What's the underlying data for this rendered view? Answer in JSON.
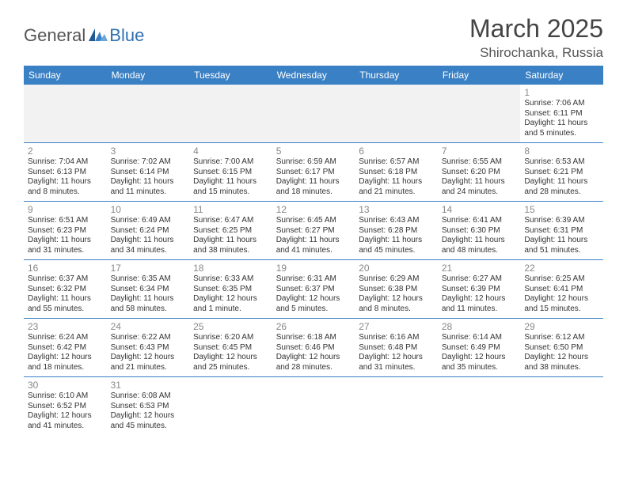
{
  "logo": {
    "textA": "General",
    "textB": "Blue"
  },
  "header": {
    "month": "March 2025",
    "location": "Shirochanka, Russia"
  },
  "colors": {
    "headerBlue": "#3a80c4",
    "rowBorder": "#3a80c4",
    "blankFill": "#f2f2f2",
    "dayNum": "#888888"
  },
  "weekdays": [
    "Sunday",
    "Monday",
    "Tuesday",
    "Wednesday",
    "Thursday",
    "Friday",
    "Saturday"
  ],
  "days": {
    "1": {
      "sunrise": "7:06 AM",
      "sunset": "6:11 PM",
      "daylight": "11 hours and 5 minutes."
    },
    "2": {
      "sunrise": "7:04 AM",
      "sunset": "6:13 PM",
      "daylight": "11 hours and 8 minutes."
    },
    "3": {
      "sunrise": "7:02 AM",
      "sunset": "6:14 PM",
      "daylight": "11 hours and 11 minutes."
    },
    "4": {
      "sunrise": "7:00 AM",
      "sunset": "6:15 PM",
      "daylight": "11 hours and 15 minutes."
    },
    "5": {
      "sunrise": "6:59 AM",
      "sunset": "6:17 PM",
      "daylight": "11 hours and 18 minutes."
    },
    "6": {
      "sunrise": "6:57 AM",
      "sunset": "6:18 PM",
      "daylight": "11 hours and 21 minutes."
    },
    "7": {
      "sunrise": "6:55 AM",
      "sunset": "6:20 PM",
      "daylight": "11 hours and 24 minutes."
    },
    "8": {
      "sunrise": "6:53 AM",
      "sunset": "6:21 PM",
      "daylight": "11 hours and 28 minutes."
    },
    "9": {
      "sunrise": "6:51 AM",
      "sunset": "6:23 PM",
      "daylight": "11 hours and 31 minutes."
    },
    "10": {
      "sunrise": "6:49 AM",
      "sunset": "6:24 PM",
      "daylight": "11 hours and 34 minutes."
    },
    "11": {
      "sunrise": "6:47 AM",
      "sunset": "6:25 PM",
      "daylight": "11 hours and 38 minutes."
    },
    "12": {
      "sunrise": "6:45 AM",
      "sunset": "6:27 PM",
      "daylight": "11 hours and 41 minutes."
    },
    "13": {
      "sunrise": "6:43 AM",
      "sunset": "6:28 PM",
      "daylight": "11 hours and 45 minutes."
    },
    "14": {
      "sunrise": "6:41 AM",
      "sunset": "6:30 PM",
      "daylight": "11 hours and 48 minutes."
    },
    "15": {
      "sunrise": "6:39 AM",
      "sunset": "6:31 PM",
      "daylight": "11 hours and 51 minutes."
    },
    "16": {
      "sunrise": "6:37 AM",
      "sunset": "6:32 PM",
      "daylight": "11 hours and 55 minutes."
    },
    "17": {
      "sunrise": "6:35 AM",
      "sunset": "6:34 PM",
      "daylight": "11 hours and 58 minutes."
    },
    "18": {
      "sunrise": "6:33 AM",
      "sunset": "6:35 PM",
      "daylight": "12 hours and 1 minute."
    },
    "19": {
      "sunrise": "6:31 AM",
      "sunset": "6:37 PM",
      "daylight": "12 hours and 5 minutes."
    },
    "20": {
      "sunrise": "6:29 AM",
      "sunset": "6:38 PM",
      "daylight": "12 hours and 8 minutes."
    },
    "21": {
      "sunrise": "6:27 AM",
      "sunset": "6:39 PM",
      "daylight": "12 hours and 11 minutes."
    },
    "22": {
      "sunrise": "6:25 AM",
      "sunset": "6:41 PM",
      "daylight": "12 hours and 15 minutes."
    },
    "23": {
      "sunrise": "6:24 AM",
      "sunset": "6:42 PM",
      "daylight": "12 hours and 18 minutes."
    },
    "24": {
      "sunrise": "6:22 AM",
      "sunset": "6:43 PM",
      "daylight": "12 hours and 21 minutes."
    },
    "25": {
      "sunrise": "6:20 AM",
      "sunset": "6:45 PM",
      "daylight": "12 hours and 25 minutes."
    },
    "26": {
      "sunrise": "6:18 AM",
      "sunset": "6:46 PM",
      "daylight": "12 hours and 28 minutes."
    },
    "27": {
      "sunrise": "6:16 AM",
      "sunset": "6:48 PM",
      "daylight": "12 hours and 31 minutes."
    },
    "28": {
      "sunrise": "6:14 AM",
      "sunset": "6:49 PM",
      "daylight": "12 hours and 35 minutes."
    },
    "29": {
      "sunrise": "6:12 AM",
      "sunset": "6:50 PM",
      "daylight": "12 hours and 38 minutes."
    },
    "30": {
      "sunrise": "6:10 AM",
      "sunset": "6:52 PM",
      "daylight": "12 hours and 41 minutes."
    },
    "31": {
      "sunrise": "6:08 AM",
      "sunset": "6:53 PM",
      "daylight": "12 hours and 45 minutes."
    }
  },
  "labels": {
    "sunrise": "Sunrise:",
    "sunset": "Sunset:",
    "daylight": "Daylight:"
  },
  "layout": {
    "startWeekday": 6,
    "daysInMonth": 31
  }
}
